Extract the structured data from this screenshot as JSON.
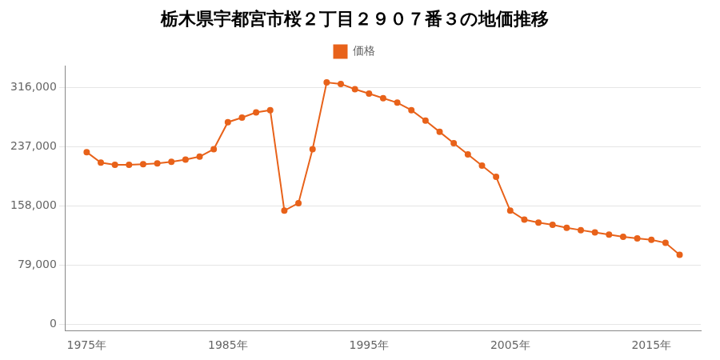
{
  "chart_data": {
    "type": "line",
    "title": "栃木県宇都宮市桜２丁目２９０７番３の地価推移",
    "x": [
      1975,
      1976,
      1977,
      1978,
      1979,
      1980,
      1981,
      1982,
      1983,
      1984,
      1985,
      1986,
      1987,
      1988,
      1989,
      1990,
      1991,
      1992,
      1993,
      1994,
      1995,
      1996,
      1997,
      1998,
      1999,
      2000,
      2001,
      2002,
      2003,
      2004,
      2005,
      2006,
      2007,
      2008,
      2009,
      2010,
      2011,
      2012,
      2013,
      2014,
      2015,
      2016,
      2017
    ],
    "series": [
      {
        "name": "価格",
        "color": "#e8621a",
        "marker": "circle",
        "values": [
          230000,
          216000,
          213000,
          213000,
          214000,
          215000,
          217000,
          220000,
          224000,
          234000,
          270000,
          276000,
          283000,
          286000,
          152000,
          162000,
          234000,
          323000,
          321000,
          314000,
          308000,
          302000,
          296000,
          286000,
          272000,
          257000,
          242000,
          227000,
          212000,
          197000,
          152000,
          140000,
          136000,
          133000,
          129000,
          126000,
          123000,
          120000,
          117000,
          115000,
          113000,
          109000,
          93000
        ]
      }
    ],
    "xlim": [
      1973.5,
      2018.5
    ],
    "xticks": [
      {
        "value": 1975,
        "label": "1975年"
      },
      {
        "value": 1985,
        "label": "1985年"
      },
      {
        "value": 1995,
        "label": "1995年"
      },
      {
        "value": 2005,
        "label": "2005年"
      },
      {
        "value": 2015,
        "label": "2015年"
      }
    ],
    "ylim": [
      -8000,
      345000
    ],
    "yticks": [
      0,
      {
        "value": 79000,
        "label": "79,000"
      },
      {
        "value": 158000,
        "label": "158,000"
      },
      {
        "value": 237000,
        "label": "237,000"
      },
      {
        "value": 316000,
        "label": "316,000"
      }
    ],
    "grid": "y",
    "legend": "top"
  }
}
